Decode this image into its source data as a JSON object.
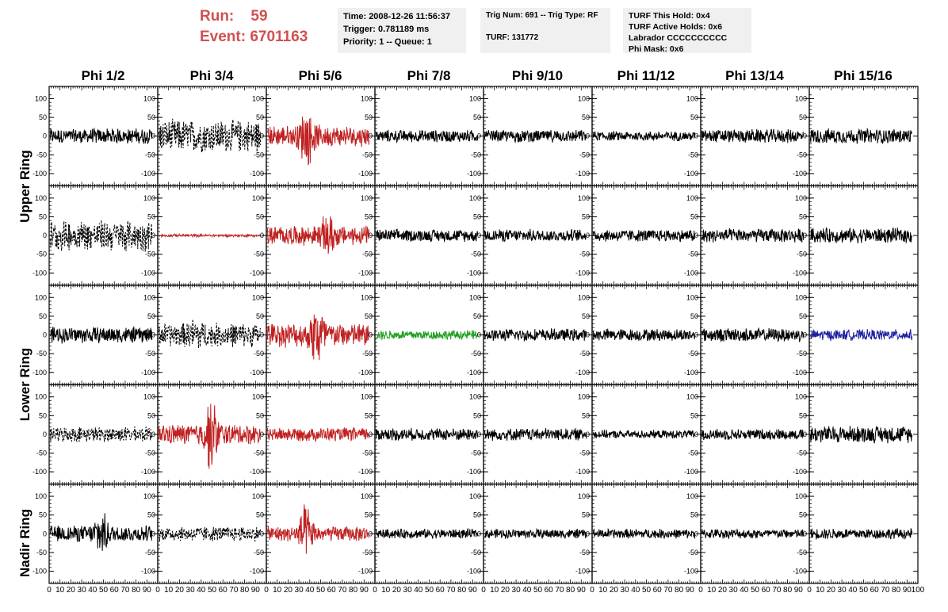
{
  "header": {
    "run_label": "Run:",
    "run_value": "59",
    "event_label": "Event:",
    "event_value": "6701163",
    "box1": [
      "Time: 2008-12-26 11:56:37",
      "Trigger: 0.781189 ms",
      "Priority: 1 -- Queue: 1"
    ],
    "box2": [
      "Trig Num: 691 -- Trig Type: RF",
      "",
      "TURF: 131772"
    ],
    "box3": [
      "TURF This Hold: 0x4",
      "TURF Active Holds: 0x6",
      "Labrador CCCCCCCCCC",
      "Phi Mask: 0x6"
    ]
  },
  "chart_data": {
    "type": "line",
    "columns": [
      "Phi 1/2",
      "Phi 3/4",
      "Phi 5/6",
      "Phi 7/8",
      "Phi 9/10",
      "Phi 11/12",
      "Phi 13/14",
      "Phi 15/16"
    ],
    "ring_labels": [
      "Upper Ring",
      "Lower Ring",
      "Nadir Ring"
    ],
    "ylim": [
      -120,
      120
    ],
    "yticks": [
      -100,
      -50,
      0,
      50,
      100
    ],
    "xlim": [
      0,
      100
    ],
    "xticks": [
      0,
      10,
      20,
      30,
      40,
      50,
      60,
      70,
      80,
      90,
      100
    ],
    "colors": {
      "black": "#000000",
      "red": "#c02020",
      "green": "#20a020",
      "blue": "#2020a0"
    },
    "panels": [
      [
        {
          "color": "black",
          "style": "solid",
          "amp": 22,
          "burst": 0
        },
        {
          "color": "black",
          "style": "dashed",
          "amp": 48,
          "burst": 0
        },
        {
          "color": "red",
          "style": "solid",
          "amp": 30,
          "burst": 95
        },
        {
          "color": "black",
          "style": "solid",
          "amp": 18,
          "burst": 0
        },
        {
          "color": "black",
          "style": "solid",
          "amp": 18,
          "burst": 0
        },
        {
          "color": "black",
          "style": "solid",
          "amp": 14,
          "burst": 0
        },
        {
          "color": "black",
          "style": "solid",
          "amp": 20,
          "burst": 0
        },
        {
          "color": "black",
          "style": "solid",
          "amp": 22,
          "burst": 0
        }
      ],
      [
        {
          "color": "black",
          "style": "dashed",
          "amp": 45,
          "burst": 0
        },
        {
          "color": "red",
          "style": "solid",
          "amp": 4,
          "burst": 0
        },
        {
          "color": "red",
          "style": "solid",
          "amp": 28,
          "burst": 70
        },
        {
          "color": "black",
          "style": "solid",
          "amp": 18,
          "burst": 0
        },
        {
          "color": "black",
          "style": "solid",
          "amp": 18,
          "burst": 0
        },
        {
          "color": "black",
          "style": "solid",
          "amp": 18,
          "burst": 0
        },
        {
          "color": "black",
          "style": "solid",
          "amp": 20,
          "burst": 0
        },
        {
          "color": "black",
          "style": "solid",
          "amp": 22,
          "burst": 0
        }
      ],
      [
        {
          "color": "black",
          "style": "solid",
          "amp": 24,
          "burst": 0
        },
        {
          "color": "black",
          "style": "dashed",
          "amp": 35,
          "burst": 55
        },
        {
          "color": "red",
          "style": "solid",
          "amp": 35,
          "burst": 110
        },
        {
          "color": "green",
          "style": "solid",
          "amp": 14,
          "burst": 0
        },
        {
          "color": "black",
          "style": "solid",
          "amp": 18,
          "burst": 0
        },
        {
          "color": "black",
          "style": "solid",
          "amp": 18,
          "burst": 0
        },
        {
          "color": "black",
          "style": "solid",
          "amp": 20,
          "burst": 0
        },
        {
          "color": "blue",
          "style": "solid",
          "amp": 16,
          "burst": 0
        }
      ],
      [
        {
          "color": "black",
          "style": "dashed",
          "amp": 22,
          "burst": 0
        },
        {
          "color": "red",
          "style": "solid",
          "amp": 30,
          "burst": 110
        },
        {
          "color": "red",
          "style": "solid",
          "amp": 20,
          "burst": 0
        },
        {
          "color": "black",
          "style": "solid",
          "amp": 18,
          "burst": 0
        },
        {
          "color": "black",
          "style": "solid",
          "amp": 18,
          "burst": 0
        },
        {
          "color": "black",
          "style": "solid",
          "amp": 12,
          "burst": 0
        },
        {
          "color": "black",
          "style": "solid",
          "amp": 16,
          "burst": 0
        },
        {
          "color": "black",
          "style": "solid",
          "amp": 25,
          "burst": 0
        }
      ],
      [
        {
          "color": "black",
          "style": "solid",
          "amp": 24,
          "burst": 70
        },
        {
          "color": "black",
          "style": "dashed",
          "amp": 22,
          "burst": 0
        },
        {
          "color": "red",
          "style": "solid",
          "amp": 22,
          "burst": 85
        },
        {
          "color": "black",
          "style": "solid",
          "amp": 14,
          "burst": 0
        },
        {
          "color": "black",
          "style": "solid",
          "amp": 14,
          "burst": 0
        },
        {
          "color": "black",
          "style": "solid",
          "amp": 14,
          "burst": 0
        },
        {
          "color": "black",
          "style": "solid",
          "amp": 14,
          "burst": 0
        },
        {
          "color": "black",
          "style": "solid",
          "amp": 16,
          "burst": 0
        }
      ]
    ]
  }
}
